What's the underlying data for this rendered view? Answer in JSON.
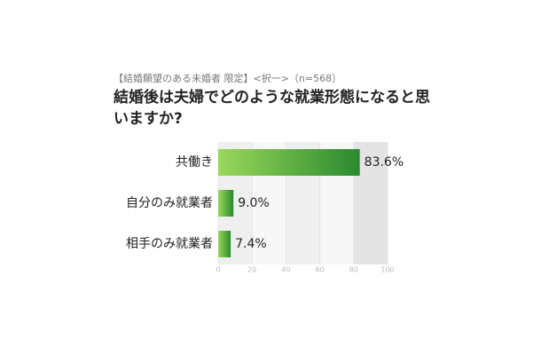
{
  "chart_data": {
    "type": "bar",
    "orientation": "horizontal",
    "subtitle": "【結婚願望のある未婚者 限定】<択一>（n=568）",
    "title": "結婚後は夫婦でどのような就業形態になると思いますか?",
    "categories": [
      "共働き",
      "自分のみ就業者",
      "相手のみ就業者"
    ],
    "values": [
      83.6,
      9.0,
      7.4
    ],
    "value_labels": [
      "83.6%",
      "9.0%",
      "7.4%"
    ],
    "xlim": [
      0,
      100
    ],
    "xticks": [
      0,
      20,
      40,
      60,
      80,
      100
    ]
  }
}
